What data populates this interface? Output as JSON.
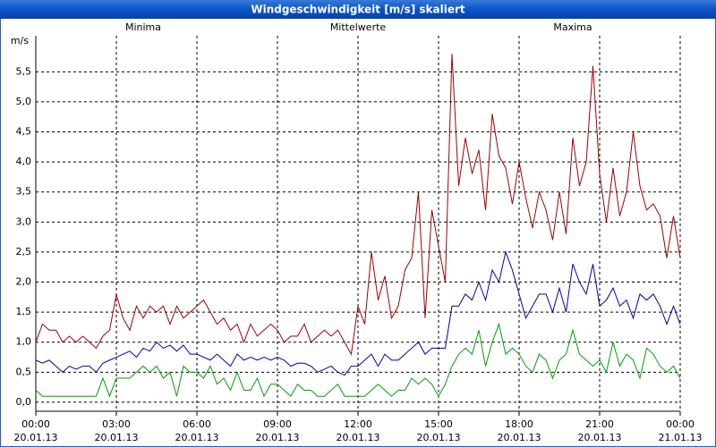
{
  "chart_data": {
    "type": "line",
    "title": "Windgeschwindigkeit [m/s] skaliert",
    "y_label": "m/s",
    "xlim": [
      0,
      24
    ],
    "ylim": [
      -0.15,
      6.1
    ],
    "grid": true,
    "xticks": [
      {
        "value": 0,
        "label": "00:00",
        "date": "20.01.13"
      },
      {
        "value": 3,
        "label": "03:00",
        "date": "20.01.13"
      },
      {
        "value": 6,
        "label": "06:00",
        "date": "20.01.13"
      },
      {
        "value": 9,
        "label": "09:00",
        "date": "20.01.13"
      },
      {
        "value": 12,
        "label": "12:00",
        "date": "20.01.13"
      },
      {
        "value": 15,
        "label": "15:00",
        "date": "20.01.13"
      },
      {
        "value": 18,
        "label": "18:00",
        "date": "20.01.13"
      },
      {
        "value": 21,
        "label": "21:00",
        "date": "20.01.13"
      },
      {
        "value": 24,
        "label": "00:00",
        "date": "21.01.13"
      }
    ],
    "yticks": [
      {
        "value": 0,
        "label": "0,0"
      },
      {
        "value": 0.5,
        "label": "0,5"
      },
      {
        "value": 1,
        "label": "1,0"
      },
      {
        "value": 1.5,
        "label": "1,5"
      },
      {
        "value": 2,
        "label": "2,0"
      },
      {
        "value": 2.5,
        "label": "2,5"
      },
      {
        "value": 3,
        "label": "3,0"
      },
      {
        "value": 3.5,
        "label": "3,5"
      },
      {
        "value": 4,
        "label": "4,0"
      },
      {
        "value": 4.5,
        "label": "4,5"
      },
      {
        "value": 5,
        "label": "5,0"
      },
      {
        "value": 5.5,
        "label": "5,5"
      }
    ],
    "x": [
      0,
      0.25,
      0.5,
      0.75,
      1,
      1.25,
      1.5,
      1.75,
      2,
      2.25,
      2.5,
      2.75,
      3,
      3.25,
      3.5,
      3.75,
      4,
      4.25,
      4.5,
      4.75,
      5,
      5.25,
      5.5,
      5.75,
      6,
      6.25,
      6.5,
      6.75,
      7,
      7.25,
      7.5,
      7.75,
      8,
      8.25,
      8.5,
      8.75,
      9,
      9.25,
      9.5,
      9.75,
      10,
      10.25,
      10.5,
      10.75,
      11,
      11.25,
      11.5,
      11.75,
      12,
      12.25,
      12.5,
      12.75,
      13,
      13.25,
      13.5,
      13.75,
      14,
      14.25,
      14.5,
      14.75,
      15,
      15.25,
      15.5,
      15.75,
      16,
      16.25,
      16.5,
      16.75,
      17,
      17.25,
      17.5,
      17.75,
      18,
      18.25,
      18.5,
      18.75,
      19,
      19.25,
      19.5,
      19.75,
      20,
      20.25,
      20.5,
      20.75,
      21,
      21.25,
      21.5,
      21.75,
      22,
      22.25,
      22.5,
      22.75,
      23,
      23.25,
      23.5,
      23.75,
      24
    ],
    "series": [
      {
        "name": "Minima",
        "color": "#00a000",
        "values": [
          0.2,
          0.1,
          0.1,
          0.1,
          0.1,
          0.1,
          0.1,
          0.1,
          0.1,
          0.1,
          0.4,
          0.1,
          0.4,
          0.4,
          0.4,
          0.5,
          0.6,
          0.5,
          0.6,
          0.4,
          0.5,
          0.1,
          0.6,
          0.5,
          0.5,
          0.4,
          0.6,
          0.3,
          0.4,
          0.2,
          0.5,
          0.2,
          0.2,
          0.4,
          0.1,
          0.3,
          0.3,
          0.2,
          0.1,
          0.3,
          0.2,
          0.2,
          0.1,
          0.1,
          0.2,
          0.3,
          0.1,
          0.1,
          0.1,
          0.1,
          0.2,
          0.3,
          0.2,
          0.1,
          0.2,
          0.2,
          0.4,
          0.3,
          0.4,
          0.3,
          0.1,
          0.3,
          0.6,
          0.8,
          0.9,
          0.8,
          1.2,
          0.6,
          1.0,
          1.3,
          0.8,
          0.9,
          0.8,
          0.6,
          0.5,
          0.8,
          0.7,
          0.4,
          0.7,
          0.8,
          1.2,
          0.8,
          0.7,
          0.6,
          0.7,
          0.5,
          1.0,
          0.6,
          0.8,
          0.7,
          0.4,
          0.9,
          0.8,
          0.6,
          0.5,
          0.6,
          0.4
        ]
      },
      {
        "name": "Mittelwerte",
        "color": "#0000b0",
        "values": [
          0.7,
          0.65,
          0.7,
          0.6,
          0.5,
          0.6,
          0.55,
          0.6,
          0.6,
          0.5,
          0.65,
          0.7,
          0.75,
          0.8,
          0.85,
          0.75,
          0.9,
          0.85,
          1.0,
          0.9,
          0.95,
          0.85,
          0.95,
          0.8,
          0.8,
          0.75,
          0.7,
          0.8,
          0.7,
          0.6,
          0.8,
          0.7,
          0.75,
          0.7,
          0.75,
          0.7,
          0.75,
          0.7,
          0.6,
          0.65,
          0.65,
          0.6,
          0.5,
          0.55,
          0.6,
          0.5,
          0.45,
          0.6,
          0.6,
          0.7,
          0.8,
          0.6,
          0.8,
          0.7,
          0.7,
          0.8,
          0.9,
          1.0,
          0.8,
          0.9,
          0.9,
          0.9,
          1.6,
          1.6,
          1.8,
          1.7,
          2.0,
          1.7,
          2.2,
          2.0,
          2.5,
          2.2,
          1.8,
          1.4,
          1.6,
          1.8,
          1.8,
          1.5,
          1.9,
          1.5,
          2.3,
          2.0,
          1.8,
          2.3,
          1.6,
          1.7,
          1.9,
          1.6,
          1.7,
          1.4,
          1.8,
          1.7,
          1.8,
          1.6,
          1.3,
          1.6,
          1.3
        ]
      },
      {
        "name": "Maxima",
        "color": "#a00000",
        "values": [
          1.0,
          1.3,
          1.2,
          1.2,
          1.0,
          1.1,
          1.0,
          1.1,
          1.0,
          0.9,
          1.1,
          1.2,
          1.8,
          1.4,
          1.2,
          1.6,
          1.4,
          1.6,
          1.5,
          1.6,
          1.3,
          1.6,
          1.4,
          1.5,
          1.6,
          1.7,
          1.5,
          1.3,
          1.4,
          1.2,
          1.3,
          1.0,
          1.3,
          1.1,
          1.2,
          1.3,
          1.2,
          1.0,
          1.1,
          1.1,
          1.3,
          1.0,
          1.1,
          1.2,
          1.1,
          1.2,
          1.0,
          0.8,
          1.6,
          1.3,
          2.5,
          1.7,
          2.1,
          1.4,
          1.6,
          2.2,
          2.4,
          3.5,
          1.4,
          3.2,
          2.6,
          2.0,
          5.8,
          3.6,
          4.4,
          3.8,
          4.2,
          3.2,
          4.8,
          4.1,
          3.9,
          3.3,
          4.0,
          3.4,
          2.9,
          3.5,
          3.2,
          2.7,
          3.5,
          2.8,
          4.4,
          3.6,
          4.0,
          5.6,
          3.8,
          3.0,
          3.9,
          3.1,
          3.5,
          4.5,
          3.6,
          3.2,
          3.3,
          3.1,
          2.4,
          3.1,
          2.4
        ]
      }
    ]
  }
}
